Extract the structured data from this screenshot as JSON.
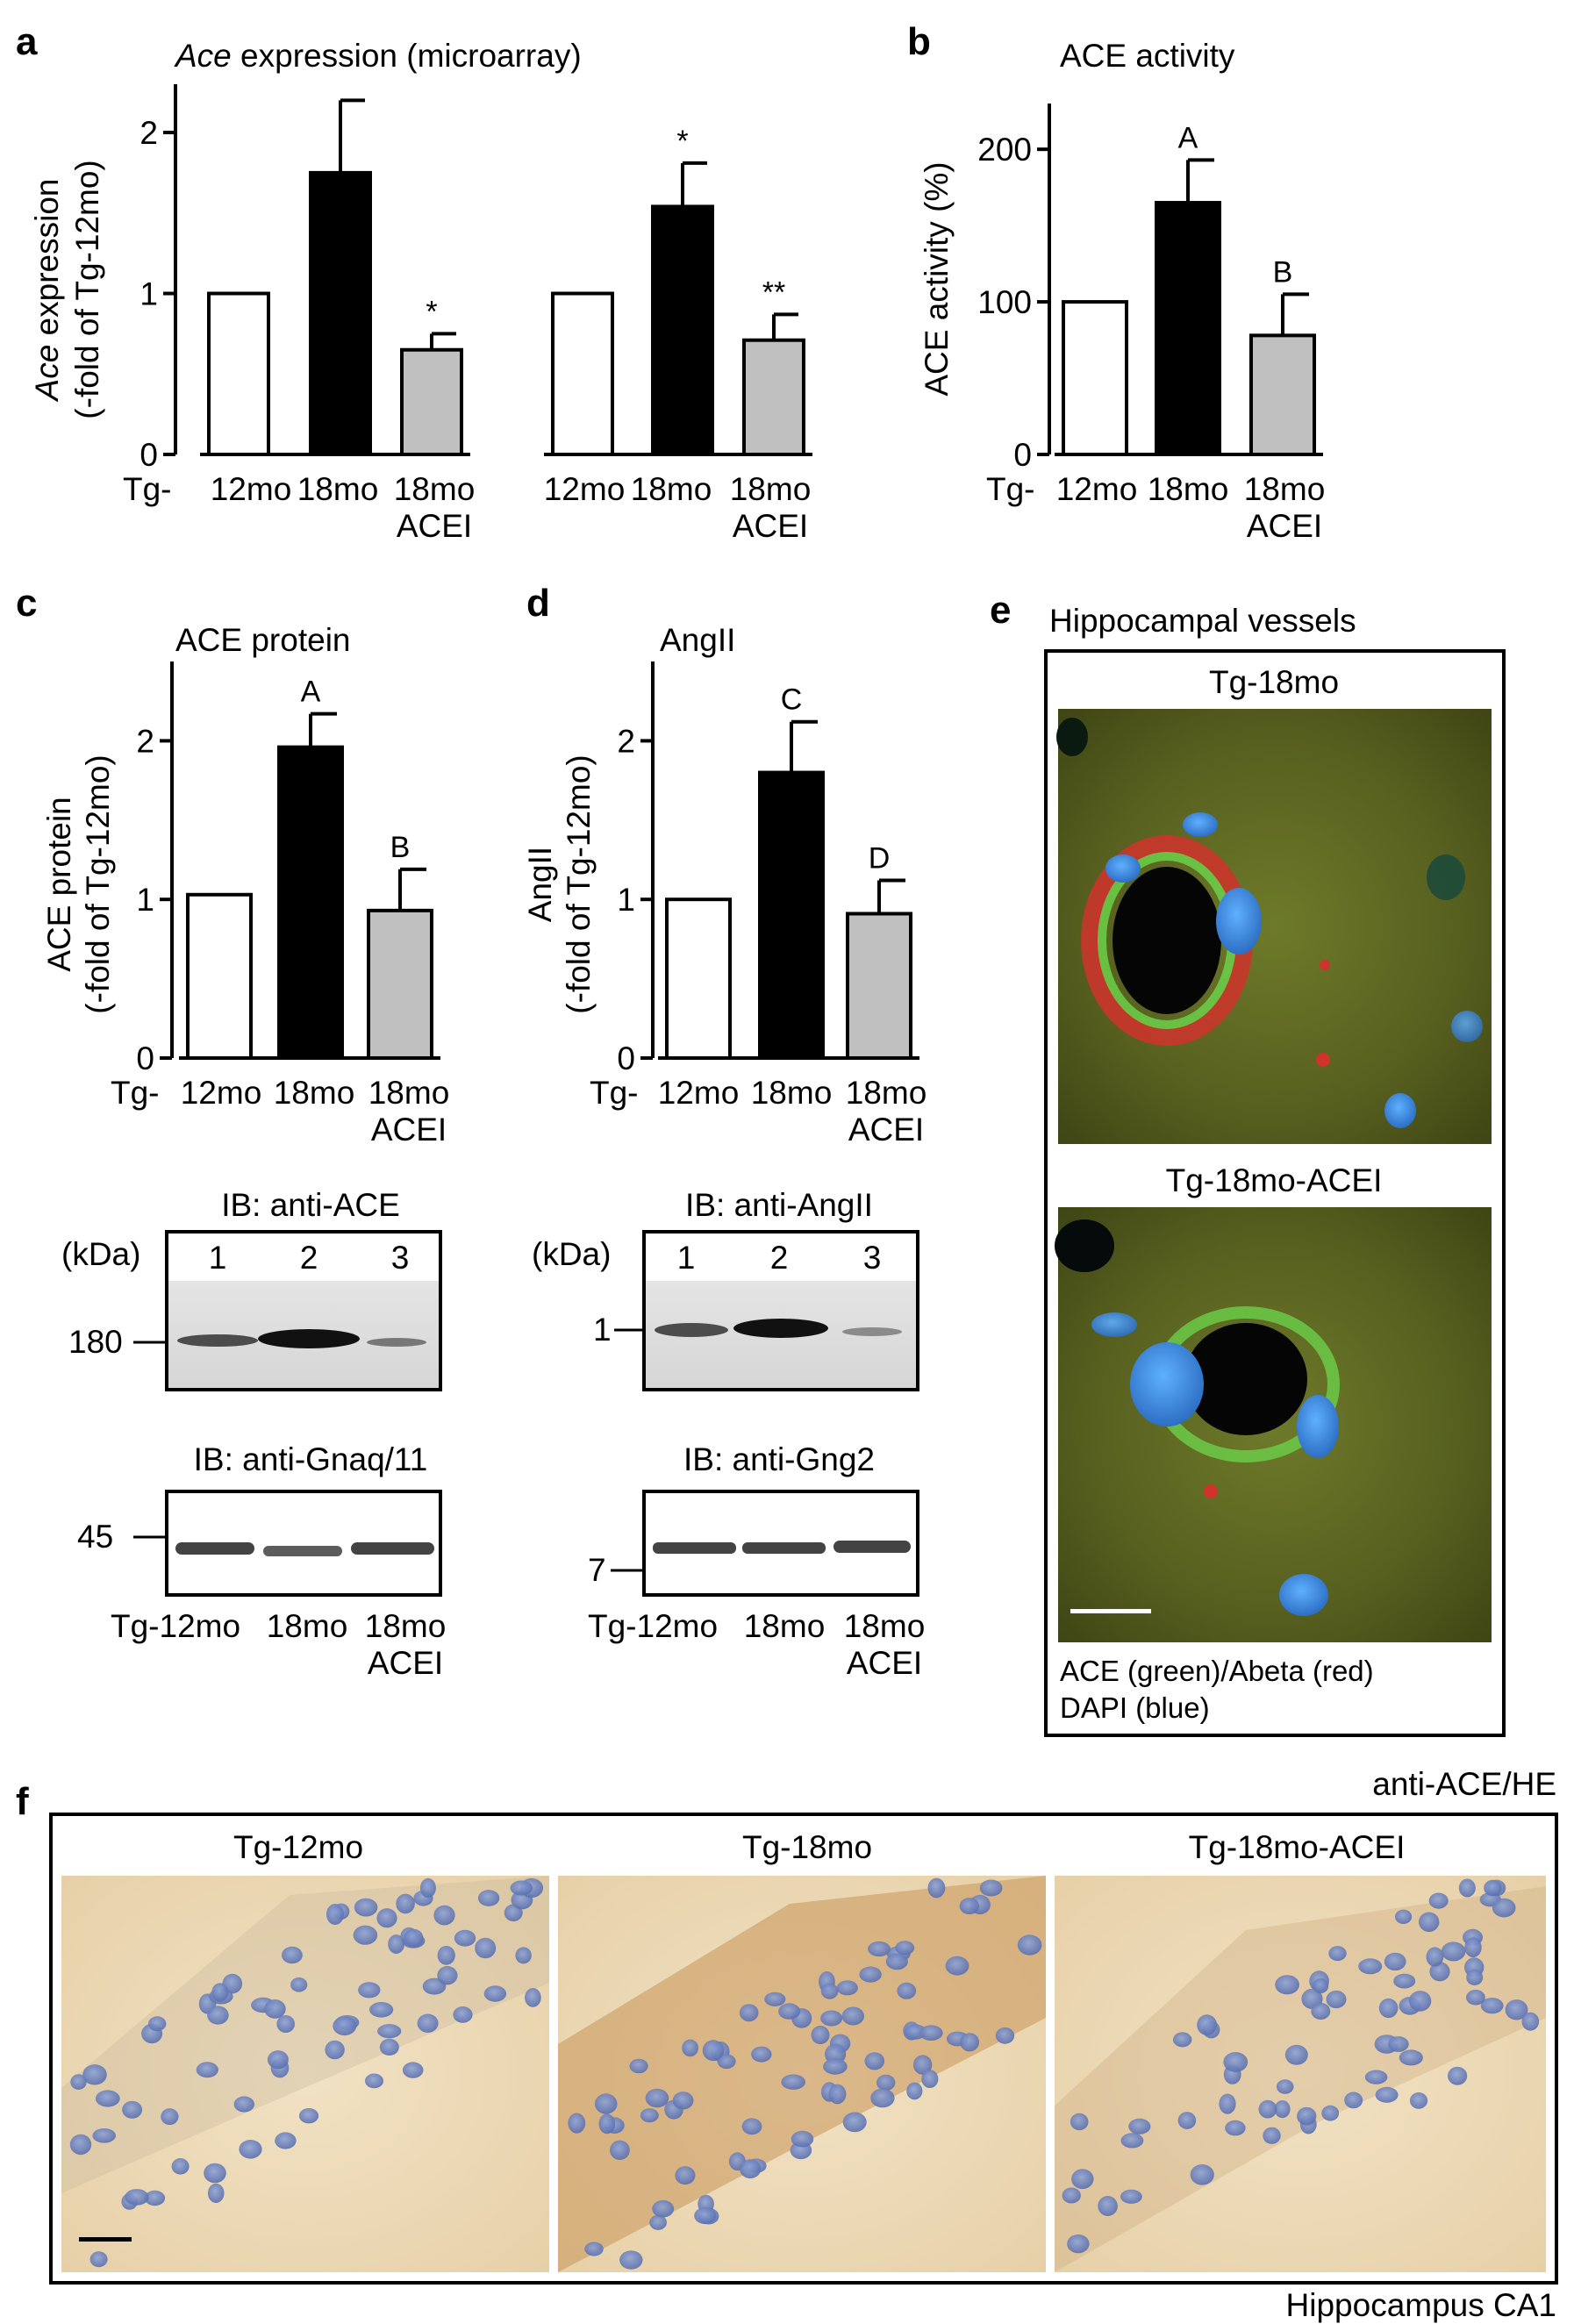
{
  "panels": {
    "a": {
      "label": "a",
      "title_italic": "Ace",
      "title_rest": " expression (microarray)",
      "ylabel_italic": "Ace",
      "ylabel_rest": " expression",
      "ylabel2": "(-fold of Tg-12mo)"
    },
    "b": {
      "label": "b",
      "title": "ACE activity",
      "ylabel": "ACE activity (%)"
    },
    "c": {
      "label": "c",
      "title": "ACE protein",
      "ylabel": "ACE protein",
      "ylabel2": "(-fold of Tg-12mo)"
    },
    "d": {
      "label": "d",
      "title": "AngII",
      "ylabel": "AngII",
      "ylabel2": "(-fold of Tg-12mo)"
    },
    "e": {
      "label": "e",
      "title": "Hippocampal vessels",
      "img1_title": "Tg-18mo",
      "img2_title": "Tg-18mo-ACEI",
      "caption1": "ACE (green)/Abeta (red)",
      "caption2": "DAPI (blue)"
    },
    "f": {
      "label": "f",
      "top_right": "anti-ACE/HE",
      "bottom_right": "Hippocampus CA1",
      "img_titles": [
        "Tg-12mo",
        "Tg-18mo",
        "Tg-18mo-ACEI"
      ]
    }
  },
  "xlabels": {
    "tg": "Tg-",
    "tg_joined": "Tg-12mo",
    "m12": "12mo",
    "m18": "18mo",
    "m18b": "18mo",
    "acei": "ACEI"
  },
  "blots": {
    "c_top": {
      "title": "IB: anti-ACE",
      "kda": "(kDa)",
      "lanes": [
        "1",
        "2",
        "3"
      ],
      "marker": "180"
    },
    "c_bottom": {
      "title": "IB: anti-Gnaq/11",
      "marker": "45"
    },
    "d_top": {
      "title": "IB: anti-AngII",
      "kda": "(kDa)",
      "lanes": [
        "1",
        "2",
        "3"
      ],
      "marker": "1"
    },
    "d_bottom": {
      "title": "IB: anti-Gng2",
      "marker": "7"
    }
  },
  "colors": {
    "tg12mo": "#ffffff",
    "tg18mo": "#000000",
    "tg18mo_acei": "#c0c0c0"
  },
  "chart_data": [
    {
      "type": "bar",
      "panel": "a",
      "group": 1,
      "categories": [
        "12mo",
        "18mo",
        "18mo ACEI"
      ],
      "values": [
        1.0,
        1.75,
        0.65
      ],
      "errors": [
        0,
        0.45,
        0.1
      ],
      "significance": [
        "",
        "",
        "*"
      ],
      "ylim": [
        0,
        2.3
      ],
      "yticks": [
        0,
        1,
        2
      ]
    },
    {
      "type": "bar",
      "panel": "a",
      "group": 2,
      "categories": [
        "12mo",
        "18mo",
        "18mo ACEI"
      ],
      "values": [
        1.0,
        1.54,
        0.71
      ],
      "errors": [
        0,
        0.27,
        0.16
      ],
      "significance": [
        "",
        "*",
        "**"
      ],
      "ylim": [
        0,
        2.3
      ],
      "yticks": [
        0,
        1,
        2
      ]
    },
    {
      "type": "bar",
      "panel": "b",
      "categories": [
        "12mo",
        "18mo",
        "18mo ACEI"
      ],
      "values": [
        100,
        165,
        78
      ],
      "errors": [
        0,
        28,
        27
      ],
      "significance": [
        "",
        "A",
        "B"
      ],
      "ylim": [
        0,
        230
      ],
      "yticks": [
        0,
        100,
        200
      ]
    },
    {
      "type": "bar",
      "panel": "c",
      "categories": [
        "12mo",
        "18mo",
        "18mo ACEI"
      ],
      "values": [
        1.03,
        1.96,
        0.93
      ],
      "errors": [
        0,
        0.21,
        0.26
      ],
      "significance": [
        "",
        "A",
        "B"
      ],
      "ylim": [
        0,
        2.5
      ],
      "yticks": [
        0,
        1,
        2
      ]
    },
    {
      "type": "bar",
      "panel": "d",
      "categories": [
        "12mo",
        "18mo",
        "18mo ACEI"
      ],
      "values": [
        1.0,
        1.8,
        0.91
      ],
      "errors": [
        0,
        0.32,
        0.21
      ],
      "significance": [
        "",
        "C",
        "D"
      ],
      "ylim": [
        0,
        2.5
      ],
      "yticks": [
        0,
        1,
        2
      ]
    }
  ]
}
